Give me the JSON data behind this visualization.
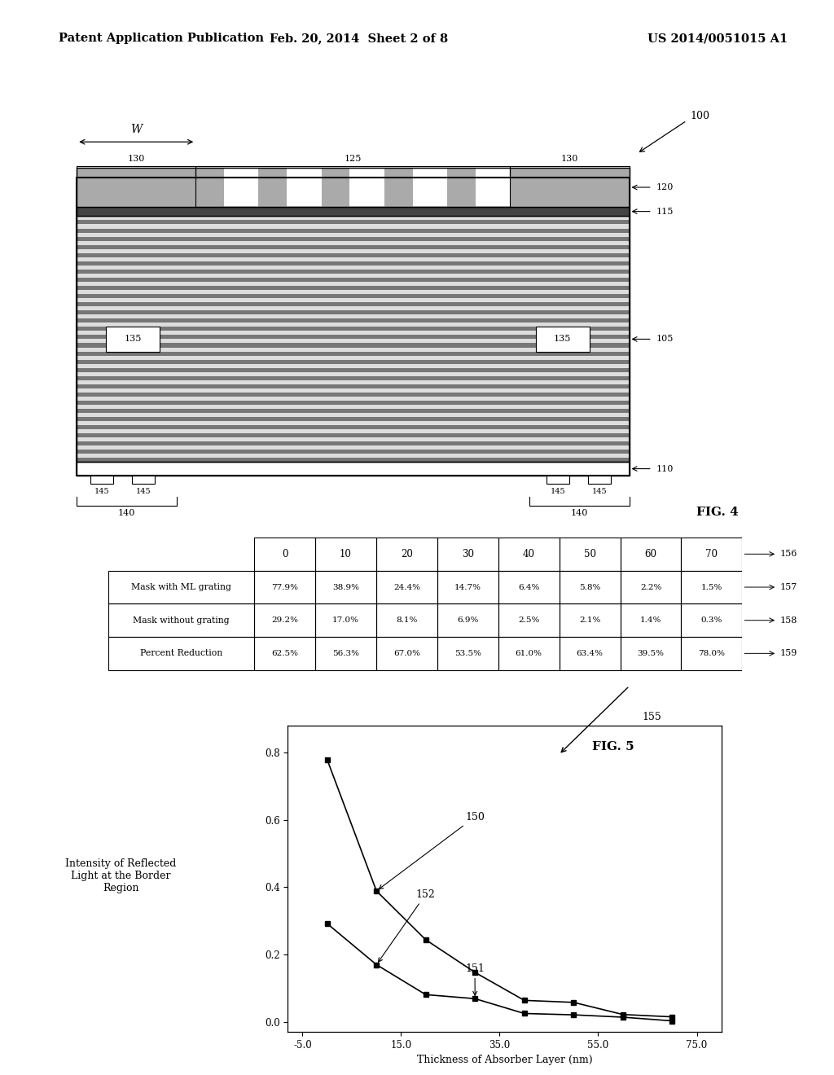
{
  "header_left": "Patent Application Publication",
  "header_center": "Feb. 20, 2014  Sheet 2 of 8",
  "header_right": "US 2014/0051015 A1",
  "fig4_label": "FIG. 4",
  "fig4_ref": "100",
  "table": {
    "col_headers": [
      "0",
      "10",
      "20",
      "30",
      "40",
      "50",
      "60",
      "70"
    ],
    "row_labels": [
      "Mask with ML grating",
      "Mask without grating",
      "Percent Reduction"
    ],
    "data": [
      [
        "77.9%",
        "38.9%",
        "24.4%",
        "14.7%",
        "6.4%",
        "5.8%",
        "2.2%",
        "1.5%"
      ],
      [
        "29.2%",
        "17.0%",
        "8.1%",
        "6.9%",
        "2.5%",
        "2.1%",
        "1.4%",
        "0.3%"
      ],
      [
        "62.5%",
        "56.3%",
        "67.0%",
        "53.5%",
        "61.0%",
        "63.4%",
        "39.5%",
        "78.0%"
      ]
    ],
    "ref_labels": [
      "156",
      "157",
      "158",
      "159"
    ]
  },
  "fig5_label": "FIG. 5",
  "fig5_ref": "155",
  "plot": {
    "xlabel": "Thickness of Absorber Layer (nm)",
    "ylabel": "Intensity of Reflected\nLight at the Border\nRegion",
    "x_with_grating": [
      0,
      10,
      20,
      30,
      40,
      50,
      60,
      70
    ],
    "y_with_grating": [
      0.779,
      0.389,
      0.244,
      0.147,
      0.064,
      0.058,
      0.022,
      0.015
    ],
    "x_without_grating": [
      0,
      10,
      20,
      30,
      40,
      50,
      60,
      70
    ],
    "y_without_grating": [
      0.292,
      0.17,
      0.081,
      0.069,
      0.025,
      0.021,
      0.014,
      0.003
    ],
    "xtick_labels": [
      "-5.0",
      "15.0",
      "35.0",
      "55.0",
      "75.0"
    ],
    "xticks": [
      -5.0,
      15.0,
      35.0,
      55.0,
      75.0
    ],
    "yticks": [
      0.0,
      0.2,
      0.4,
      0.6,
      0.8
    ],
    "xlim": [
      -8,
      80
    ],
    "ylim": [
      -0.03,
      0.88
    ]
  }
}
